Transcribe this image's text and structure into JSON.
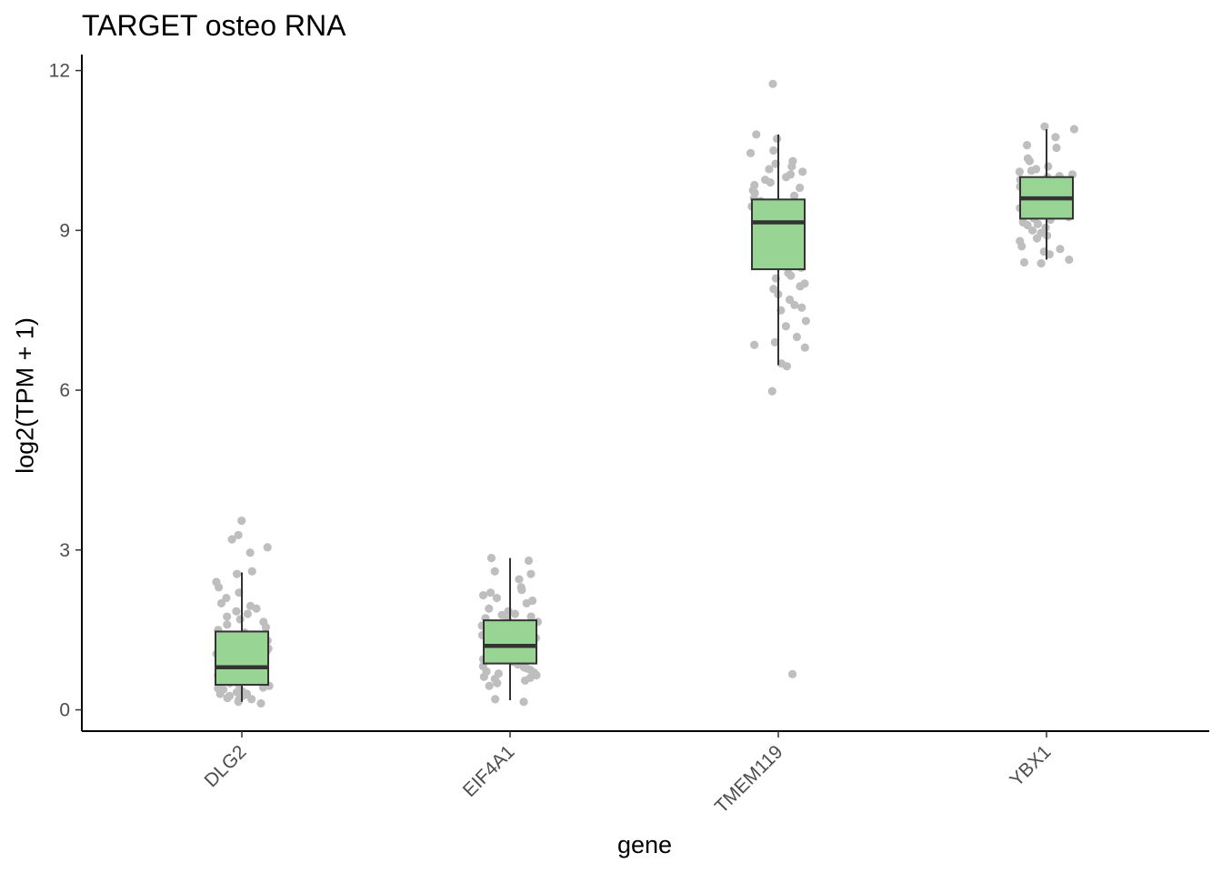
{
  "chart_data": {
    "type": "boxplot",
    "title": "TARGET osteo RNA",
    "xlabel": "gene",
    "ylabel": "log2(TPM + 1)",
    "ylim": [
      -0.4,
      12.3
    ],
    "yticks": [
      0,
      3,
      6,
      9,
      12
    ],
    "grid": false,
    "legend": "none",
    "categories": [
      "DLG2",
      "EIF4A1",
      "TMEM119",
      "YBX1"
    ],
    "box_color": "#98D594",
    "point_color": "#BEBEBE",
    "boxes": [
      {
        "name": "DLG2",
        "q1": 0.47,
        "median": 0.8,
        "q3": 1.47,
        "whisker_low": 0.15,
        "whisker_high": 2.58,
        "points": [
          0.25,
          0.28,
          0.3,
          0.22,
          0.18,
          0.35,
          0.4,
          0.42,
          0.3,
          0.33,
          0.5,
          0.55,
          0.6,
          0.65,
          0.7,
          0.75,
          0.8,
          0.85,
          0.9,
          0.95,
          1.0,
          1.05,
          1.1,
          1.15,
          1.2,
          1.25,
          1.3,
          1.35,
          1.4,
          1.45,
          0.2,
          0.26,
          0.38,
          0.45,
          0.58,
          0.62,
          0.72,
          0.78,
          0.88,
          0.98,
          1.08,
          1.28,
          1.5,
          1.55,
          1.6,
          1.65,
          1.7,
          1.75,
          1.8,
          1.85,
          1.9,
          1.95,
          2.0,
          2.1,
          2.2,
          2.3,
          2.4,
          2.55,
          2.6,
          2.95,
          3.05,
          3.2,
          3.28,
          3.55,
          0.15,
          0.12,
          0.32,
          0.48,
          0.68
        ]
      },
      {
        "name": "EIF4A1",
        "q1": 0.87,
        "median": 1.2,
        "q3": 1.68,
        "whisker_low": 0.18,
        "whisker_high": 2.85,
        "points": [
          0.2,
          0.15,
          0.45,
          0.5,
          0.55,
          0.6,
          0.65,
          0.7,
          0.75,
          0.8,
          0.85,
          0.9,
          0.95,
          1.0,
          1.05,
          1.1,
          1.15,
          1.2,
          1.25,
          1.3,
          1.35,
          1.4,
          1.45,
          1.5,
          1.55,
          1.6,
          1.65,
          1.7,
          1.75,
          1.8,
          1.85,
          1.9,
          2.0,
          2.05,
          2.1,
          2.15,
          2.2,
          2.25,
          2.3,
          2.45,
          2.55,
          2.6,
          2.8,
          2.85,
          0.62,
          0.72,
          0.82,
          0.92,
          1.02,
          1.12,
          1.22,
          1.32,
          1.42,
          1.52,
          1.62,
          1.72,
          1.78,
          0.58,
          0.68,
          0.78,
          1.38,
          1.48,
          1.58,
          0.88,
          0.98
        ]
      },
      {
        "name": "TMEM119",
        "q1": 8.27,
        "median": 9.15,
        "q3": 9.58,
        "whisker_low": 6.47,
        "whisker_high": 10.8,
        "points": [
          11.75,
          10.8,
          10.72,
          10.5,
          10.45,
          10.3,
          10.25,
          10.2,
          10.15,
          10.1,
          10.05,
          10.0,
          9.95,
          9.9,
          9.85,
          9.8,
          9.7,
          9.6,
          9.55,
          9.5,
          9.45,
          9.4,
          9.3,
          9.2,
          9.1,
          9.0,
          8.9,
          8.8,
          8.7,
          8.6,
          8.5,
          8.4,
          8.3,
          8.2,
          8.1,
          8.0,
          7.95,
          7.9,
          7.8,
          7.7,
          7.6,
          7.55,
          7.5,
          7.3,
          7.2,
          7.0,
          6.9,
          6.85,
          6.8,
          6.5,
          6.45,
          5.98,
          0.67,
          9.65,
          9.35,
          8.95,
          8.45,
          8.15,
          9.75,
          8.35
        ]
      },
      {
        "name": "YBX1",
        "q1": 9.22,
        "median": 9.6,
        "q3": 10.0,
        "whisker_low": 8.45,
        "whisker_high": 10.9,
        "points": [
          10.95,
          10.9,
          10.75,
          10.6,
          10.55,
          10.35,
          10.3,
          10.2,
          10.15,
          10.1,
          10.05,
          10.0,
          9.95,
          9.9,
          9.85,
          9.8,
          9.75,
          9.7,
          9.65,
          9.6,
          9.55,
          9.5,
          9.45,
          9.4,
          9.35,
          9.3,
          9.25,
          9.2,
          9.15,
          9.1,
          9.05,
          9.0,
          8.95,
          8.9,
          8.85,
          8.8,
          8.7,
          8.65,
          8.6,
          8.55,
          8.45,
          8.4,
          8.38,
          9.62,
          9.72,
          9.82,
          9.92,
          10.02,
          9.52,
          9.42,
          9.32,
          9.22,
          9.12,
          10.12,
          9.58,
          9.68,
          9.78,
          9.88
        ]
      }
    ]
  }
}
